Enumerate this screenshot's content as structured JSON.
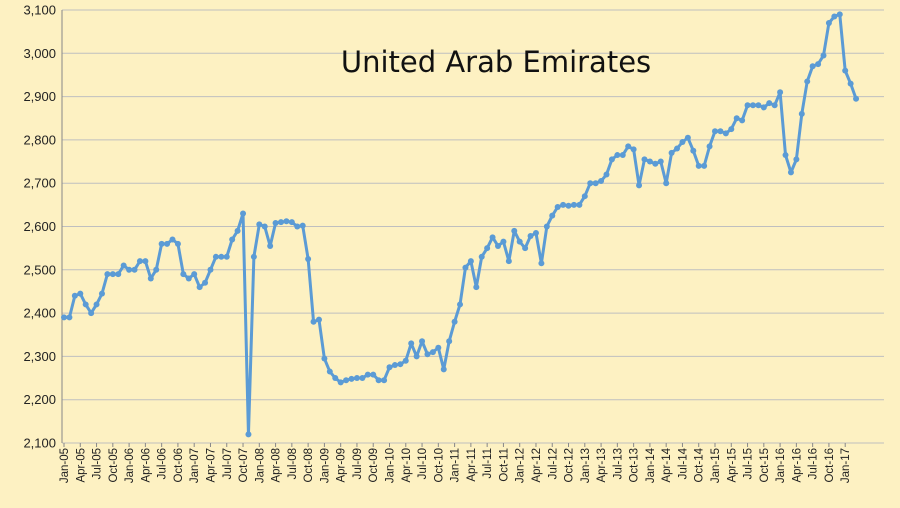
{
  "chart_data": {
    "type": "line",
    "title": "United Arab Emirates",
    "xlabel": "",
    "ylabel": "",
    "ylim": [
      2100,
      3100
    ],
    "yticks": [
      2100,
      2200,
      2300,
      2400,
      2500,
      2600,
      2700,
      2800,
      2900,
      3000,
      3100
    ],
    "ytick_labels": [
      "2,100",
      "2,200",
      "2,300",
      "2,400",
      "2,500",
      "2,600",
      "2,700",
      "2,800",
      "2,900",
      "3,000",
      "3,100"
    ],
    "grid": true,
    "legend": "none",
    "line_color": "#5b9bd5",
    "x_tick_labels": [
      "Jan-05",
      "Apr-05",
      "Jul-05",
      "Oct-05",
      "Jan-06",
      "Apr-06",
      "Jul-06",
      "Oct-06",
      "Jan-07",
      "Apr-07",
      "Jul-07",
      "Oct-07",
      "Jan-08",
      "Apr-08",
      "Jul-08",
      "Oct-08",
      "Jan-09",
      "Apr-09",
      "Jul-09",
      "Oct-09",
      "Jan-10",
      "Apr-10",
      "Jul-10",
      "Oct-10",
      "Jan-11",
      "Apr-11",
      "Jul-11",
      "Oct-11",
      "Jan-12",
      "Apr-12",
      "Jul-12",
      "Oct-12",
      "Jan-13",
      "Apr-13",
      "Jul-13",
      "Oct-13",
      "Jan-14",
      "Apr-14",
      "Jul-14",
      "Oct-14",
      "Jan-15",
      "Apr-15",
      "Jul-15",
      "Oct-15",
      "Jan-16",
      "Apr-16",
      "Jul-16",
      "Oct-16",
      "Jan-17"
    ],
    "x_start": "Jan-05",
    "x_end": "Apr-17",
    "series": [
      {
        "values": [
          2390,
          2390,
          2440,
          2445,
          2420,
          2400,
          2420,
          2445,
          2490,
          2490,
          2490,
          2510,
          2500,
          2500,
          2520,
          2520,
          2480,
          2500,
          2560,
          2560,
          2570,
          2560,
          2490,
          2480,
          2490,
          2460,
          2470,
          2500,
          2530,
          2530,
          2530,
          2570,
          2590,
          2630,
          2120,
          2530,
          2605,
          2600,
          2555,
          2608,
          2610,
          2612,
          2610,
          2600,
          2602,
          2525,
          2380,
          2385,
          2295,
          2265,
          2250,
          2240,
          2245,
          2248,
          2250,
          2250,
          2258,
          2258,
          2245,
          2245,
          2275,
          2280,
          2282,
          2290,
          2330,
          2300,
          2335,
          2305,
          2310,
          2320,
          2270,
          2335,
          2380,
          2420,
          2505,
          2520,
          2460,
          2530,
          2550,
          2575,
          2555,
          2565,
          2520,
          2590,
          2565,
          2550,
          2578,
          2585,
          2515,
          2600,
          2625,
          2645,
          2650,
          2648,
          2650,
          2650,
          2670,
          2700,
          2700,
          2705,
          2720,
          2755,
          2765,
          2765,
          2785,
          2778,
          2695,
          2755,
          2750,
          2745,
          2750,
          2700,
          2770,
          2780,
          2795,
          2805,
          2775,
          2740,
          2740,
          2785,
          2820,
          2820,
          2815,
          2825,
          2850,
          2845,
          2880,
          2880,
          2880,
          2875,
          2885,
          2880,
          2910,
          2765,
          2725,
          2755,
          2860,
          2935,
          2970,
          2975,
          2995,
          3070,
          3085,
          3090,
          2960,
          2930,
          2895
        ]
      }
    ]
  }
}
